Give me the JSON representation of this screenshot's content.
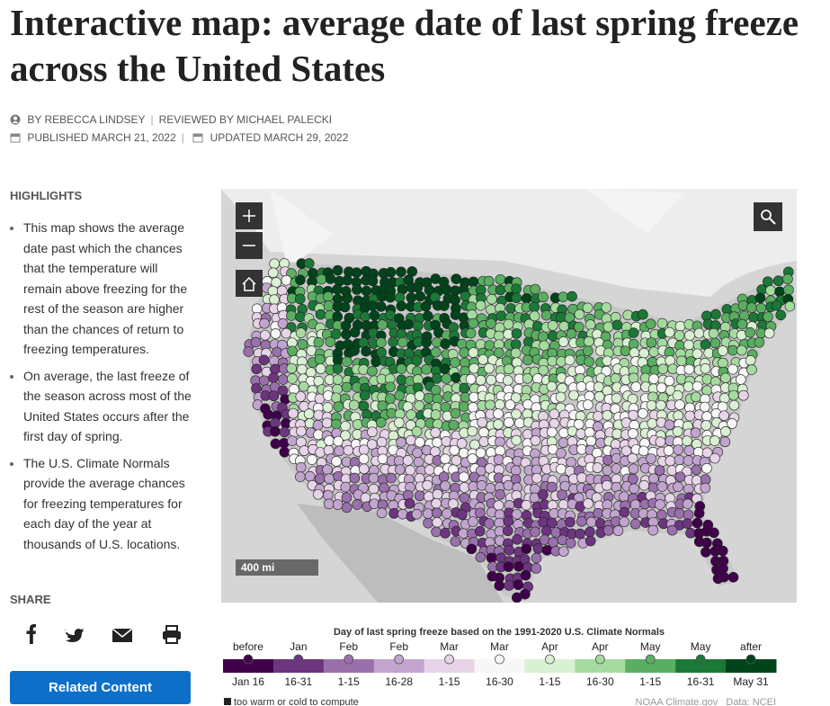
{
  "header": {
    "title": "Interactive map: average date of last spring freeze across the United States",
    "author": "BY REBECCA LINDSEY",
    "reviewer": "REVIEWED BY MICHAEL PALECKI",
    "published": "PUBLISHED MARCH 21, 2022",
    "updated": "UPDATED MARCH 29, 2022"
  },
  "highlights": {
    "heading": "HIGHLIGHTS",
    "items": [
      "This map shows the average date past which the chances that the temperature will remain above freezing for the rest of the season are higher than the chances of return to freezing temperatures.",
      "On average, the last freeze of the season across most of the United States occurs after the first day of spring.",
      "The U.S. Climate Normals provide the average chances for freezing temperatures for each day of the year at thousands of U.S. locations."
    ]
  },
  "share": {
    "heading": "SHARE",
    "button": "Related Content"
  },
  "map": {
    "scale": "400 mi",
    "legend": {
      "title": "Day of last spring freeze based on the 1991-2020 U.S. Climate Normals",
      "items": [
        {
          "top": "before",
          "bottom": "Jan 16",
          "color": "#40004b"
        },
        {
          "top": "Jan",
          "bottom": "16-31",
          "color": "#6d3580"
        },
        {
          "top": "Feb",
          "bottom": "1-15",
          "color": "#9970ab"
        },
        {
          "top": "Feb",
          "bottom": "16-28",
          "color": "#c2a5cf"
        },
        {
          "top": "Mar",
          "bottom": "1-15",
          "color": "#e7d4e8"
        },
        {
          "top": "Mar",
          "bottom": "16-30",
          "color": "#f7f7f7"
        },
        {
          "top": "Apr",
          "bottom": "1-15",
          "color": "#d9f0d3"
        },
        {
          "top": "Apr",
          "bottom": "16-30",
          "color": "#a6dba0"
        },
        {
          "top": "May",
          "bottom": "1-15",
          "color": "#5aae61"
        },
        {
          "top": "May",
          "bottom": "16-31",
          "color": "#1b7837"
        },
        {
          "top": "after",
          "bottom": "May 31",
          "color": "#00441b"
        }
      ],
      "footnote": "too warm or cold to compute",
      "credit": "NOAA Climate.gov   Data: NCEI"
    }
  }
}
